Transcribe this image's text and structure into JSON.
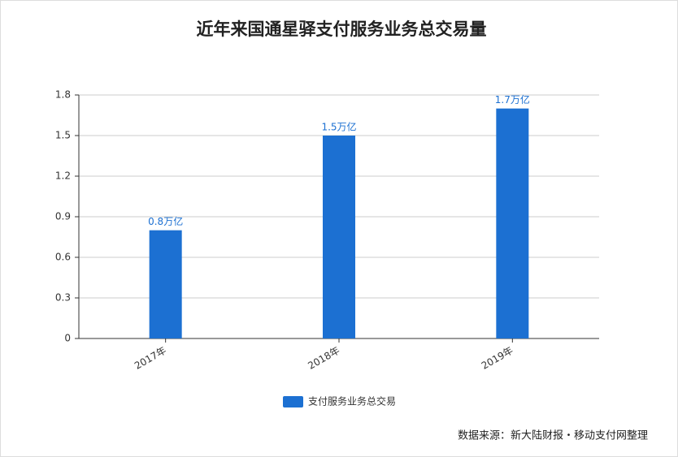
{
  "chart_data": {
    "type": "bar",
    "title": "近年来国通星驿支付服务业务总交易量",
    "categories": [
      "2017年",
      "2018年",
      "2019年"
    ],
    "series": [
      {
        "name": "支付服务业务总交易",
        "color": "#1c70d2",
        "values": [
          0.8,
          1.5,
          1.7
        ],
        "value_labels": [
          "0.8万亿",
          "1.5万亿",
          "1.7万亿"
        ]
      }
    ],
    "ylim": [
      0,
      1.8
    ],
    "yticks": [
      0,
      0.3,
      0.6,
      0.9,
      1.2,
      1.5,
      1.8
    ],
    "grid": true,
    "legend": "bottom",
    "source": "数据来源：新大陆财报・移动支付网整理"
  }
}
